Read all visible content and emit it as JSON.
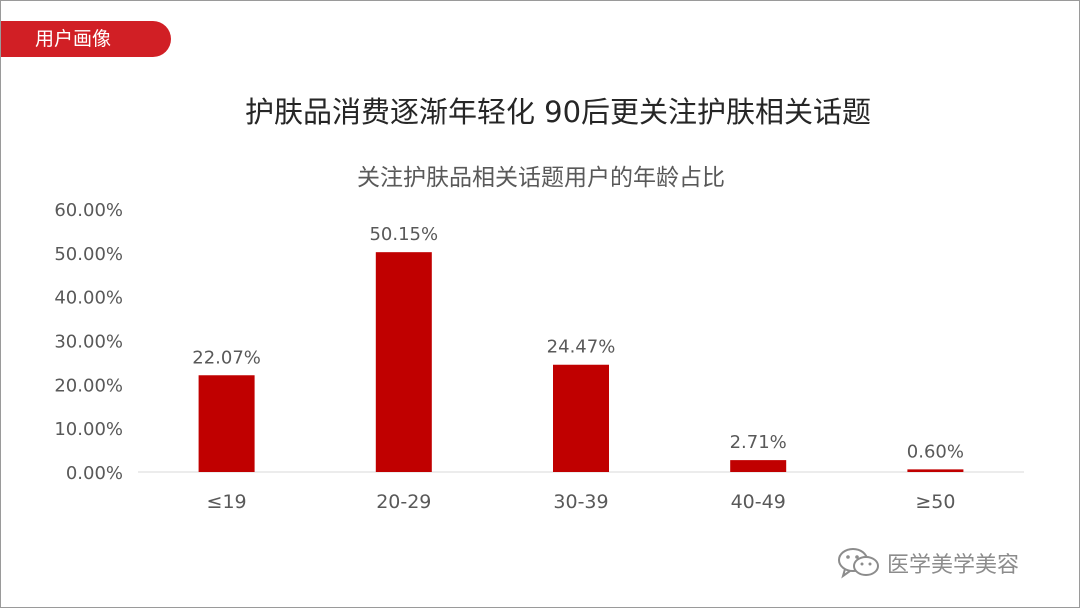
{
  "tag": "用户画像",
  "headline": "护肤品消费逐渐年轻化 90后更关注护肤相关话题",
  "watermark": {
    "text": "医学美学美容",
    "icon": "wechat-icon"
  },
  "colors": {
    "bar": "#c00000",
    "tag": "#d11f25",
    "text": "#595959",
    "axis": "#d9d9d9"
  },
  "chart_data": {
    "type": "bar",
    "title": "关注护肤品相关话题用户的年龄占比",
    "categories": [
      "≤19",
      "20-29",
      "30-39",
      "40-49",
      "≥50"
    ],
    "values": [
      22.07,
      50.15,
      24.47,
      2.71,
      0.6
    ],
    "data_labels": [
      "22.07%",
      "50.15%",
      "24.47%",
      "2.71%",
      "0.60%"
    ],
    "ylim": [
      0,
      60
    ],
    "yticks": [
      0,
      10,
      20,
      30,
      40,
      50,
      60
    ],
    "ytick_labels": [
      "0.00%",
      "10.00%",
      "20.00%",
      "30.00%",
      "40.00%",
      "50.00%",
      "60.00%"
    ],
    "xlabel": "",
    "ylabel": "",
    "grid": false,
    "legend": "none"
  }
}
